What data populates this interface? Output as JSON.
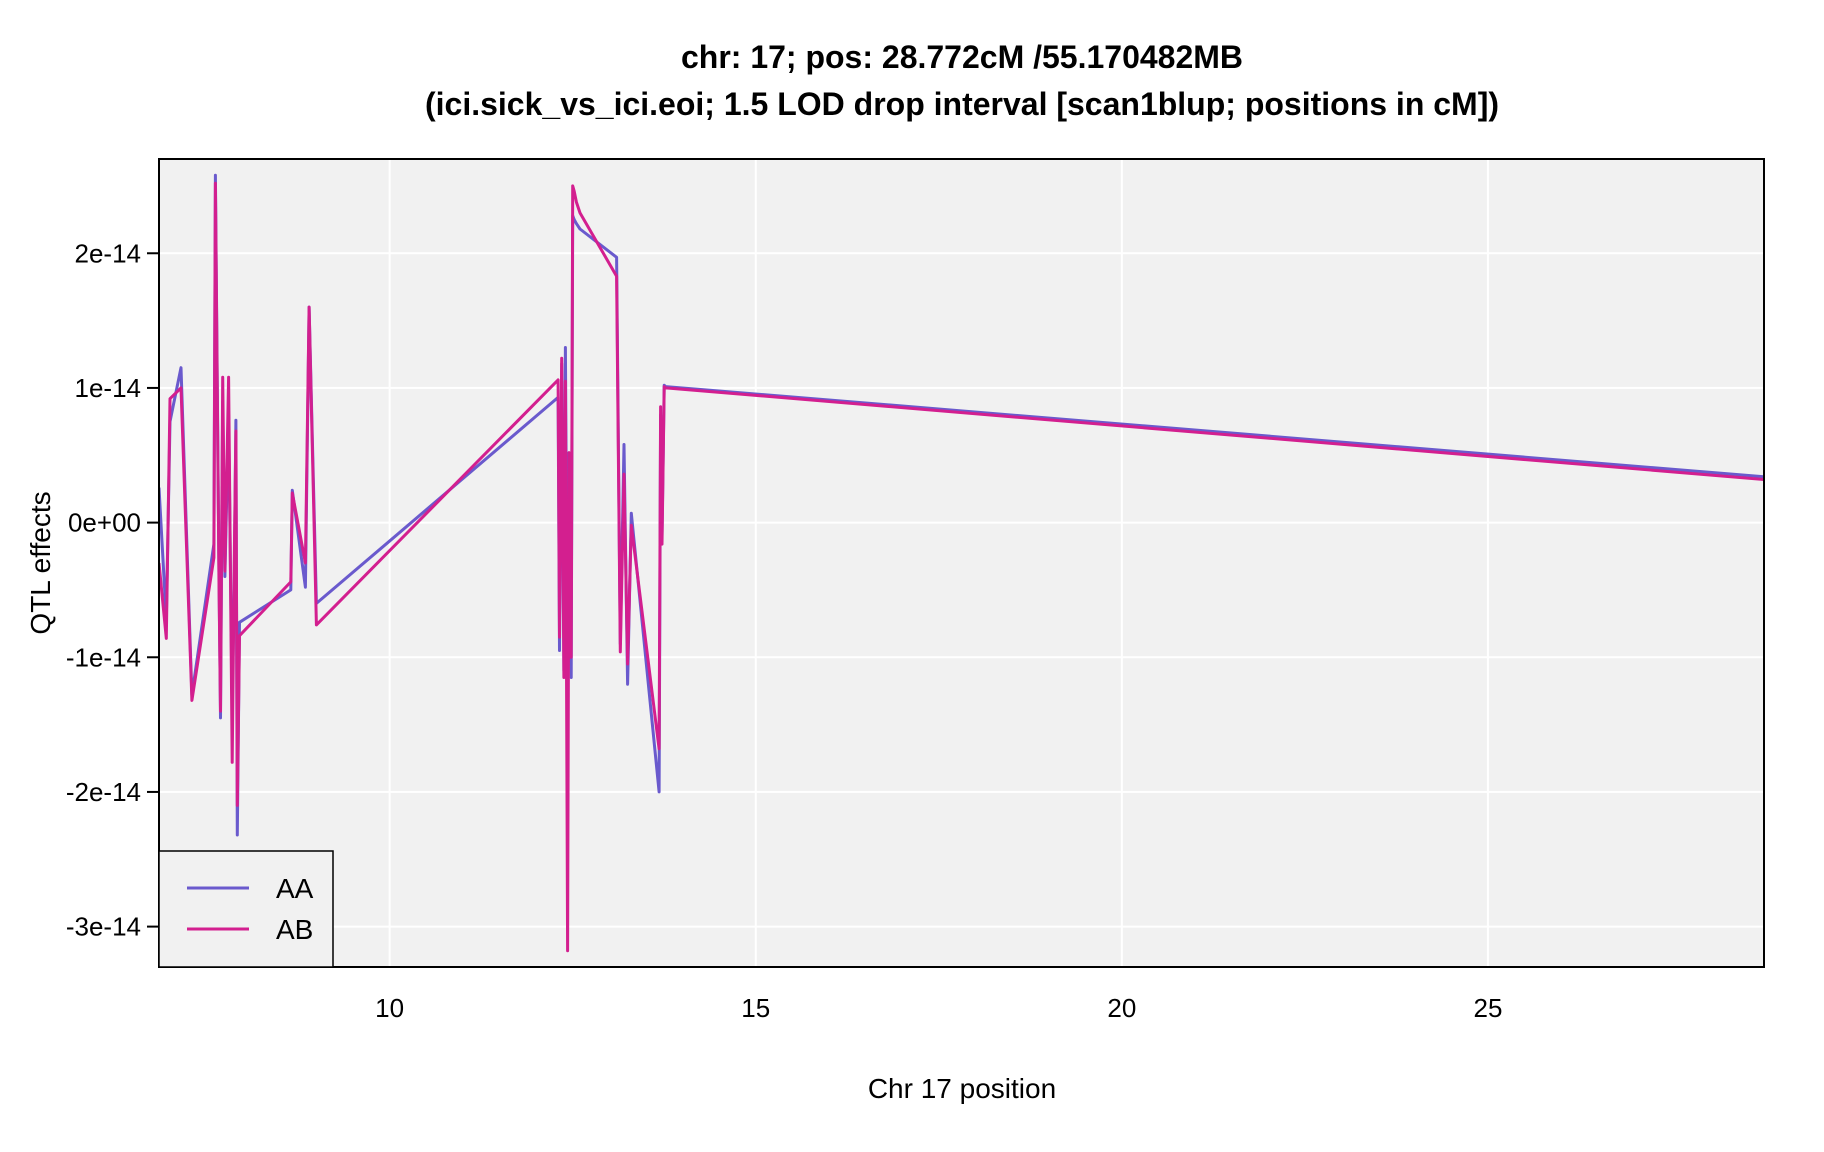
{
  "figure": {
    "title_line1": "chr: 17; pos: 28.772cM /55.170482MB",
    "title_line2": "(ici.sick_vs_ici.eoi; 1.5 LOD drop interval [scan1blup; positions in cM])"
  },
  "chart_data": {
    "type": "line",
    "title": "chr: 17; pos: 28.772cM /55.170482MB (ici.sick_vs_ici.eoi; 1.5 LOD drop interval [scan1blup; positions in cM])",
    "xlabel": "Chr 17 position",
    "ylabel": "QTL effects",
    "xlim": [
      6.85,
      28.77
    ],
    "ylim": [
      -3.3e-14,
      2.7e-14
    ],
    "x_ticks": [
      10,
      15,
      20,
      25
    ],
    "x_tick_labels": [
      "10",
      "15",
      "20",
      "25"
    ],
    "y_ticks": [
      -3e-14,
      -2e-14,
      -1e-14,
      0,
      1e-14,
      2e-14
    ],
    "y_tick_labels": [
      "-3e-14",
      "-2e-14",
      "-1e-14",
      "0e+00",
      "1e-14",
      "2e-14"
    ],
    "grid": true,
    "background": "#f1f1f1",
    "legend_position": "bottom-left",
    "series": [
      {
        "name": "AA",
        "color": "#6a5acd",
        "x": [
          6.85,
          6.95,
          7.0,
          7.15,
          7.3,
          7.6,
          7.62,
          7.67,
          7.69,
          7.72,
          7.75,
          7.8,
          7.85,
          7.88,
          7.9,
          7.92,
          7.95,
          8.65,
          8.67,
          8.85,
          8.9,
          9.0,
          12.3,
          12.32,
          12.35,
          12.38,
          12.4,
          12.43,
          12.45,
          12.48,
          12.5,
          12.52,
          12.55,
          12.6,
          13.1,
          13.15,
          13.2,
          13.25,
          13.3,
          13.68,
          13.7,
          13.72,
          13.75,
          13.77,
          28.77
        ],
        "y": [
          2.6e-15,
          -7.2e-15,
          7.5e-15,
          1.15e-14,
          -1.28e-14,
          -1.6e-15,
          2.58e-14,
          -3.8e-15,
          -1.45e-14,
          9e-15,
          -4e-15,
          8e-15,
          -1.4e-14,
          -3e-15,
          7.6e-15,
          -2.32e-14,
          -7.4e-15,
          -5e-15,
          2.4e-15,
          -4.8e-15,
          1.6e-14,
          -6e-15,
          9.3e-15,
          -9.5e-15,
          1.18e-14,
          -1.1e-14,
          1.3e-14,
          -1.3e-14,
          4e-15,
          -1.15e-14,
          2.28e-14,
          2.25e-14,
          2.22e-14,
          2.18e-14,
          1.97e-14,
          -9e-15,
          5.8e-15,
          -1.2e-14,
          7e-16,
          -2e-14,
          8e-15,
          -1e-15,
          1.02e-14,
          1.01e-14,
          3.4e-15
        ]
      },
      {
        "name": "AB",
        "color": "#d31f8f",
        "x": [
          6.85,
          6.95,
          7.0,
          7.15,
          7.3,
          7.6,
          7.62,
          7.67,
          7.69,
          7.72,
          7.75,
          7.8,
          7.85,
          7.88,
          7.9,
          7.92,
          7.95,
          8.65,
          8.67,
          8.85,
          8.9,
          9.0,
          12.3,
          12.32,
          12.35,
          12.38,
          12.4,
          12.43,
          12.45,
          12.48,
          12.5,
          12.52,
          12.55,
          12.6,
          13.1,
          13.15,
          13.2,
          13.25,
          13.3,
          13.68,
          13.7,
          13.72,
          13.75,
          13.77,
          28.77
        ],
        "y": [
          -3e-15,
          -8.6e-15,
          9.2e-15,
          1e-14,
          -1.32e-14,
          -2.6e-15,
          2.52e-14,
          -4.6e-15,
          -1.4e-14,
          1.08e-14,
          -3.6e-15,
          1.08e-14,
          -1.78e-14,
          -2e-15,
          6.8e-15,
          -2.1e-14,
          -8.4e-15,
          -4.4e-15,
          2.2e-15,
          -3e-15,
          1.6e-14,
          -7.6e-15,
          1.06e-14,
          -8.5e-15,
          1.22e-14,
          -1.15e-14,
          1.05e-14,
          -3.18e-14,
          5.2e-15,
          -1e-14,
          2.5e-14,
          2.46e-14,
          2.38e-14,
          2.3e-14,
          1.83e-14,
          -9.6e-15,
          3.6e-15,
          -1.05e-14,
          -2e-16,
          -1.68e-14,
          8.6e-15,
          -1.6e-15,
          1.01e-14,
          1e-14,
          3.2e-15
        ]
      }
    ]
  }
}
